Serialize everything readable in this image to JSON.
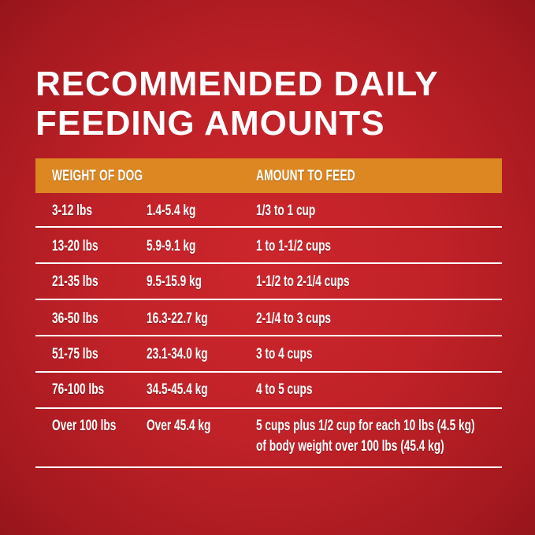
{
  "title": {
    "line1": "RECOMMENDED DAILY",
    "line2": "FEEDING AMOUNTS"
  },
  "colors": {
    "background": "#c02228",
    "header": "#dc8722",
    "text": "#ffffff"
  },
  "table": {
    "headers": {
      "weight": "WEIGHT OF DOG",
      "amount": "AMOUNT TO FEED"
    },
    "rows": [
      {
        "lbs": "3-12 lbs",
        "kg": "1.4-5.4 kg",
        "amount": "1/3 to 1 cup"
      },
      {
        "lbs": "13-20 lbs",
        "kg": "5.9-9.1 kg",
        "amount": "1 to 1-1/2 cups"
      },
      {
        "lbs": "21-35 lbs",
        "kg": "9.5-15.9 kg",
        "amount": "1-1/2 to 2-1/4 cups"
      },
      {
        "lbs": "36-50 lbs",
        "kg": "16.3-22.7 kg",
        "amount": "2-1/4 to 3 cups"
      },
      {
        "lbs": "51-75 lbs",
        "kg": "23.1-34.0 kg",
        "amount": "3 to 4 cups"
      },
      {
        "lbs": "76-100 lbs",
        "kg": "34.5-45.4 kg",
        "amount": "4 to 5 cups"
      },
      {
        "lbs": "Over 100 lbs",
        "kg": "Over 45.4 kg",
        "amount": "5 cups plus 1/2 cup for each 10 lbs (4.5 kg)",
        "amount_line2": "of body weight over 100 lbs (45.4 kg)"
      }
    ]
  }
}
